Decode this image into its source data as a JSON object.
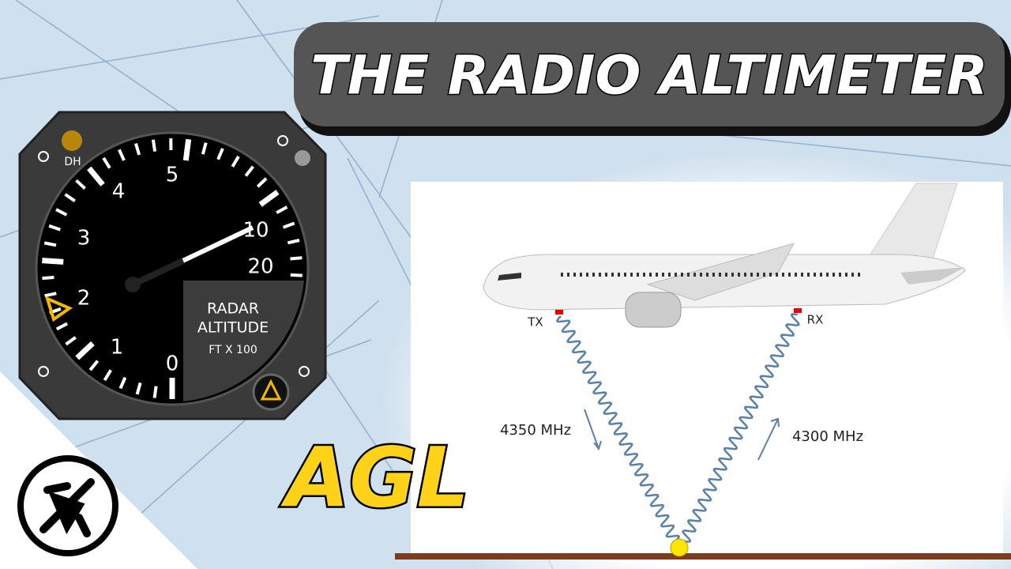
{
  "title": "THE RADIO ALTIMETER",
  "gauge": {
    "dh": "DH",
    "scale": [
      "0",
      "1",
      "2",
      "3",
      "4",
      "5",
      "10",
      "20"
    ],
    "caption": [
      "RADAR",
      "ALTITUDE",
      "FT X 100"
    ]
  },
  "badge": "AGL",
  "diagram": {
    "transmitter": "TX",
    "receiver": "RX",
    "down_frequency": "4350 MHz",
    "up_frequency": "4300 MHz"
  }
}
